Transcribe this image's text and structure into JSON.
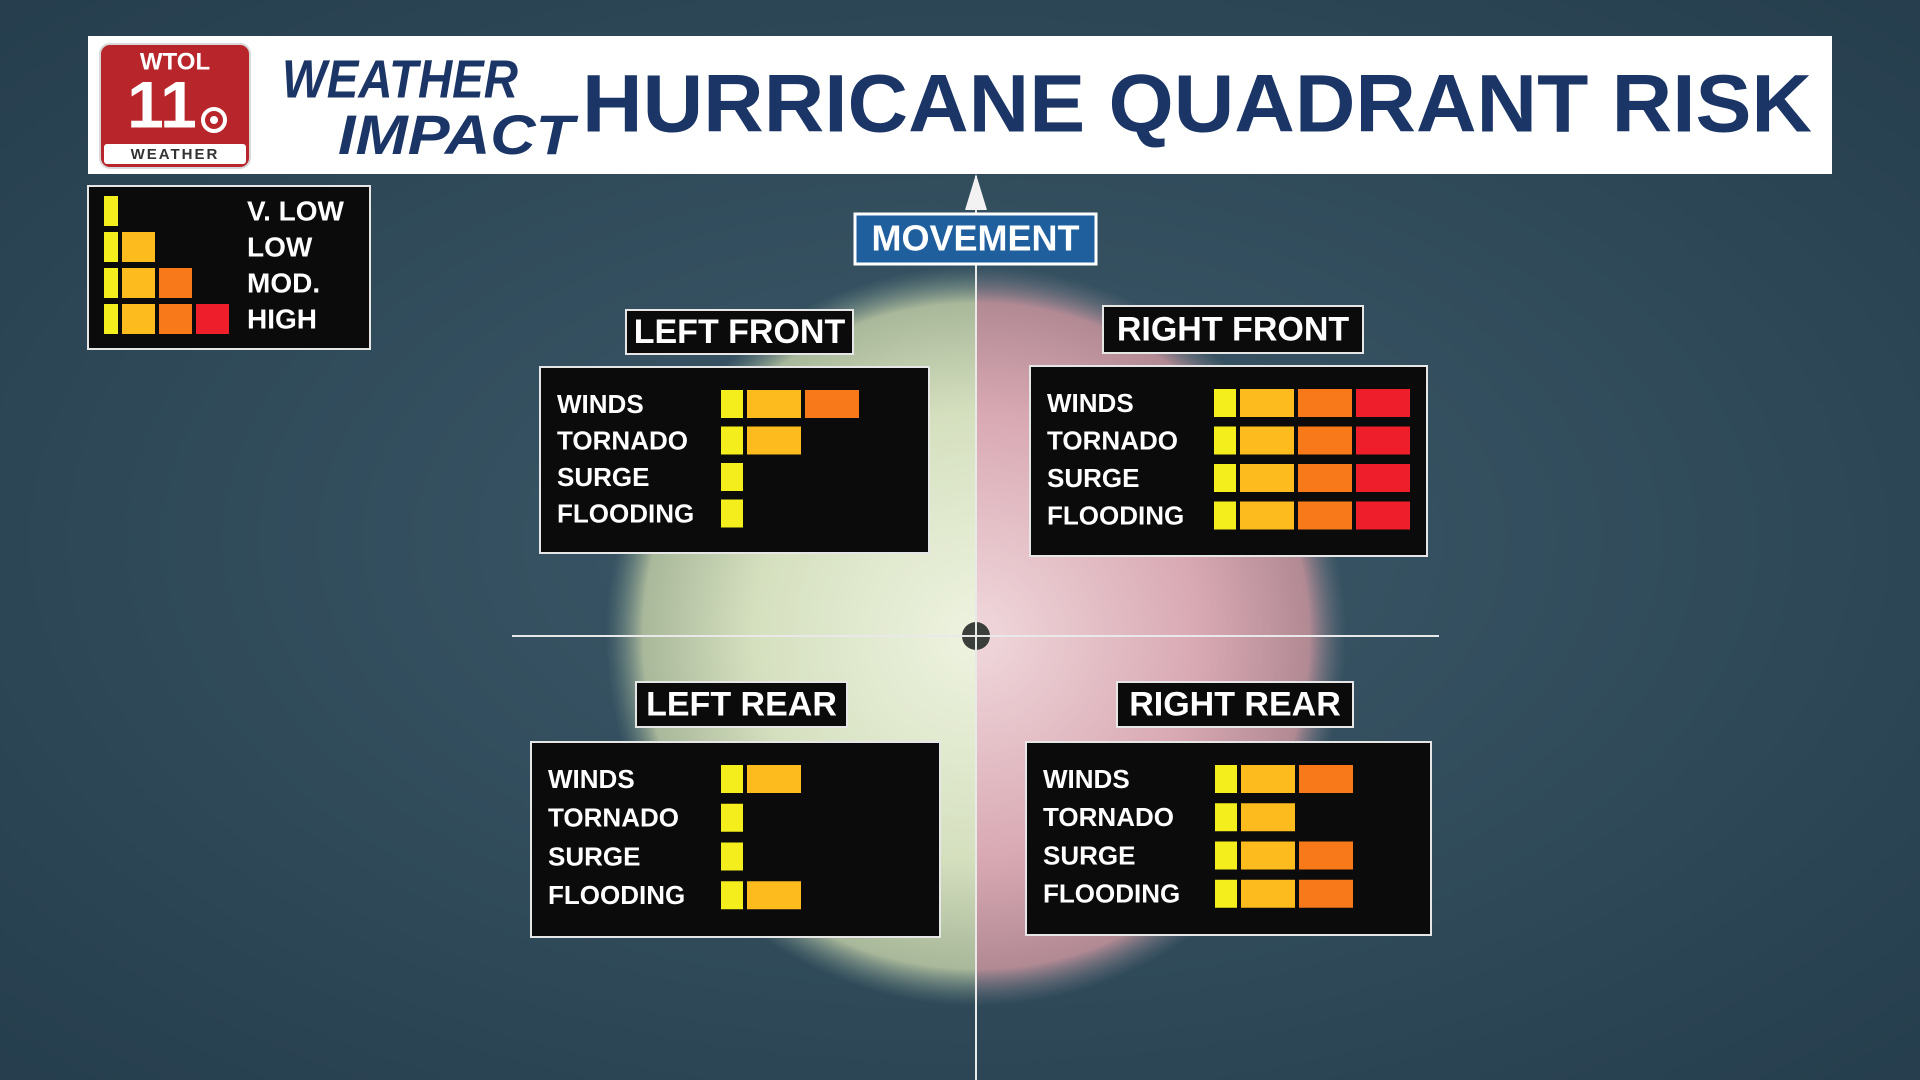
{
  "header": {
    "logo": {
      "station": "WTOL",
      "channel": "11",
      "label": "WEATHER"
    },
    "brand": [
      "WEATHER",
      "IMPACT"
    ],
    "title": "HURRICANE QUADRANT RISK"
  },
  "level_colors": [
    "#f4ef1c",
    "#fdbb1e",
    "#f7791a",
    "#ee1e2b"
  ],
  "legend": [
    {
      "label": "V. LOW",
      "level": 1
    },
    {
      "label": "LOW",
      "level": 2
    },
    {
      "label": "MOD.",
      "level": 3
    },
    {
      "label": "HIGH",
      "level": 4
    }
  ],
  "movement": "MOVEMENT",
  "quadrants": [
    {
      "title": "LEFT FRONT",
      "rows": [
        {
          "hazard": "WINDS",
          "level": 3
        },
        {
          "hazard": "TORNADO",
          "level": 2
        },
        {
          "hazard": "SURGE",
          "level": 1
        },
        {
          "hazard": "FLOODING",
          "level": 1
        }
      ]
    },
    {
      "title": "RIGHT FRONT",
      "rows": [
        {
          "hazard": "WINDS",
          "level": 4
        },
        {
          "hazard": "TORNADO",
          "level": 4
        },
        {
          "hazard": "SURGE",
          "level": 4
        },
        {
          "hazard": "FLOODING",
          "level": 4
        }
      ]
    },
    {
      "title": "LEFT REAR",
      "rows": [
        {
          "hazard": "WINDS",
          "level": 2
        },
        {
          "hazard": "TORNADO",
          "level": 1
        },
        {
          "hazard": "SURGE",
          "level": 1
        },
        {
          "hazard": "FLOODING",
          "level": 2
        }
      ]
    },
    {
      "title": "RIGHT REAR",
      "rows": [
        {
          "hazard": "WINDS",
          "level": 3
        },
        {
          "hazard": "TORNADO",
          "level": 2
        },
        {
          "hazard": "SURGE",
          "level": 3
        },
        {
          "hazard": "FLOODING",
          "level": 3
        }
      ]
    }
  ]
}
